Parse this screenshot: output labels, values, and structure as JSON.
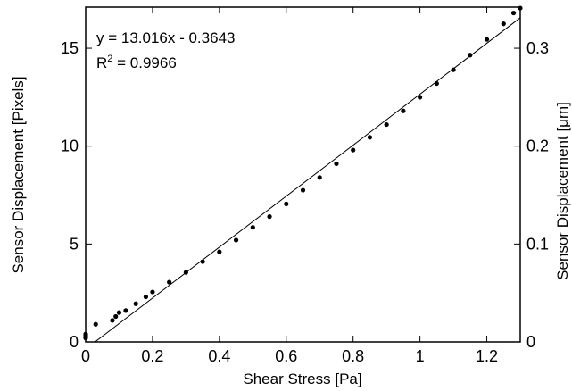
{
  "chart_data": {
    "type": "scatter",
    "title": "",
    "xlabel": "Shear Stress [Pa]",
    "ylabel": "Sensor Displacement [Pixels]",
    "ylabel_right": "Sensor Displacement [μm]",
    "xlim": [
      0,
      1.3
    ],
    "ylim": [
      0,
      17.1
    ],
    "ylim_right": [
      0,
      0.342
    ],
    "x_ticks": [
      "0",
      "0.2",
      "0.4",
      "0.6",
      "0.8",
      "1",
      "1.2"
    ],
    "y_ticks": [
      "0",
      "5",
      "10",
      "15"
    ],
    "y_ticks_right": [
      "0",
      "0.1",
      "0.2",
      "0.3"
    ],
    "grid": false,
    "legend": "none",
    "annotation": {
      "equation": "y = 13.016x - 0.3643",
      "r2_prefix": "R",
      "r2_sup": "2",
      "r2_value": " = 0.9966"
    },
    "series": [
      {
        "type": "scatter",
        "marker_color": "#000000",
        "points": [
          [
            0.0,
            0.2
          ],
          [
            0.0,
            0.25
          ],
          [
            0.0,
            0.3
          ],
          [
            0.0,
            0.35
          ],
          [
            0.0,
            0.4
          ],
          [
            0.03,
            0.9
          ],
          [
            0.08,
            1.1
          ],
          [
            0.09,
            1.3
          ],
          [
            0.1,
            1.5
          ],
          [
            0.12,
            1.6
          ],
          [
            0.15,
            1.95
          ],
          [
            0.18,
            2.3
          ],
          [
            0.2,
            2.55
          ],
          [
            0.25,
            3.05
          ],
          [
            0.3,
            3.55
          ],
          [
            0.35,
            4.1
          ],
          [
            0.4,
            4.6
          ],
          [
            0.45,
            5.2
          ],
          [
            0.5,
            5.85
          ],
          [
            0.55,
            6.4
          ],
          [
            0.6,
            7.05
          ],
          [
            0.65,
            7.75
          ],
          [
            0.7,
            8.4
          ],
          [
            0.75,
            9.1
          ],
          [
            0.8,
            9.8
          ],
          [
            0.85,
            10.45
          ],
          [
            0.9,
            11.1
          ],
          [
            0.95,
            11.8
          ],
          [
            1.0,
            12.5
          ],
          [
            1.05,
            13.2
          ],
          [
            1.1,
            13.9
          ],
          [
            1.15,
            14.65
          ],
          [
            1.2,
            15.45
          ],
          [
            1.25,
            16.25
          ],
          [
            1.28,
            16.8
          ],
          [
            1.3,
            17.05
          ]
        ]
      },
      {
        "type": "line",
        "name": "",
        "color": "#000000",
        "slope": 13.016,
        "intercept": -0.3643
      }
    ]
  }
}
